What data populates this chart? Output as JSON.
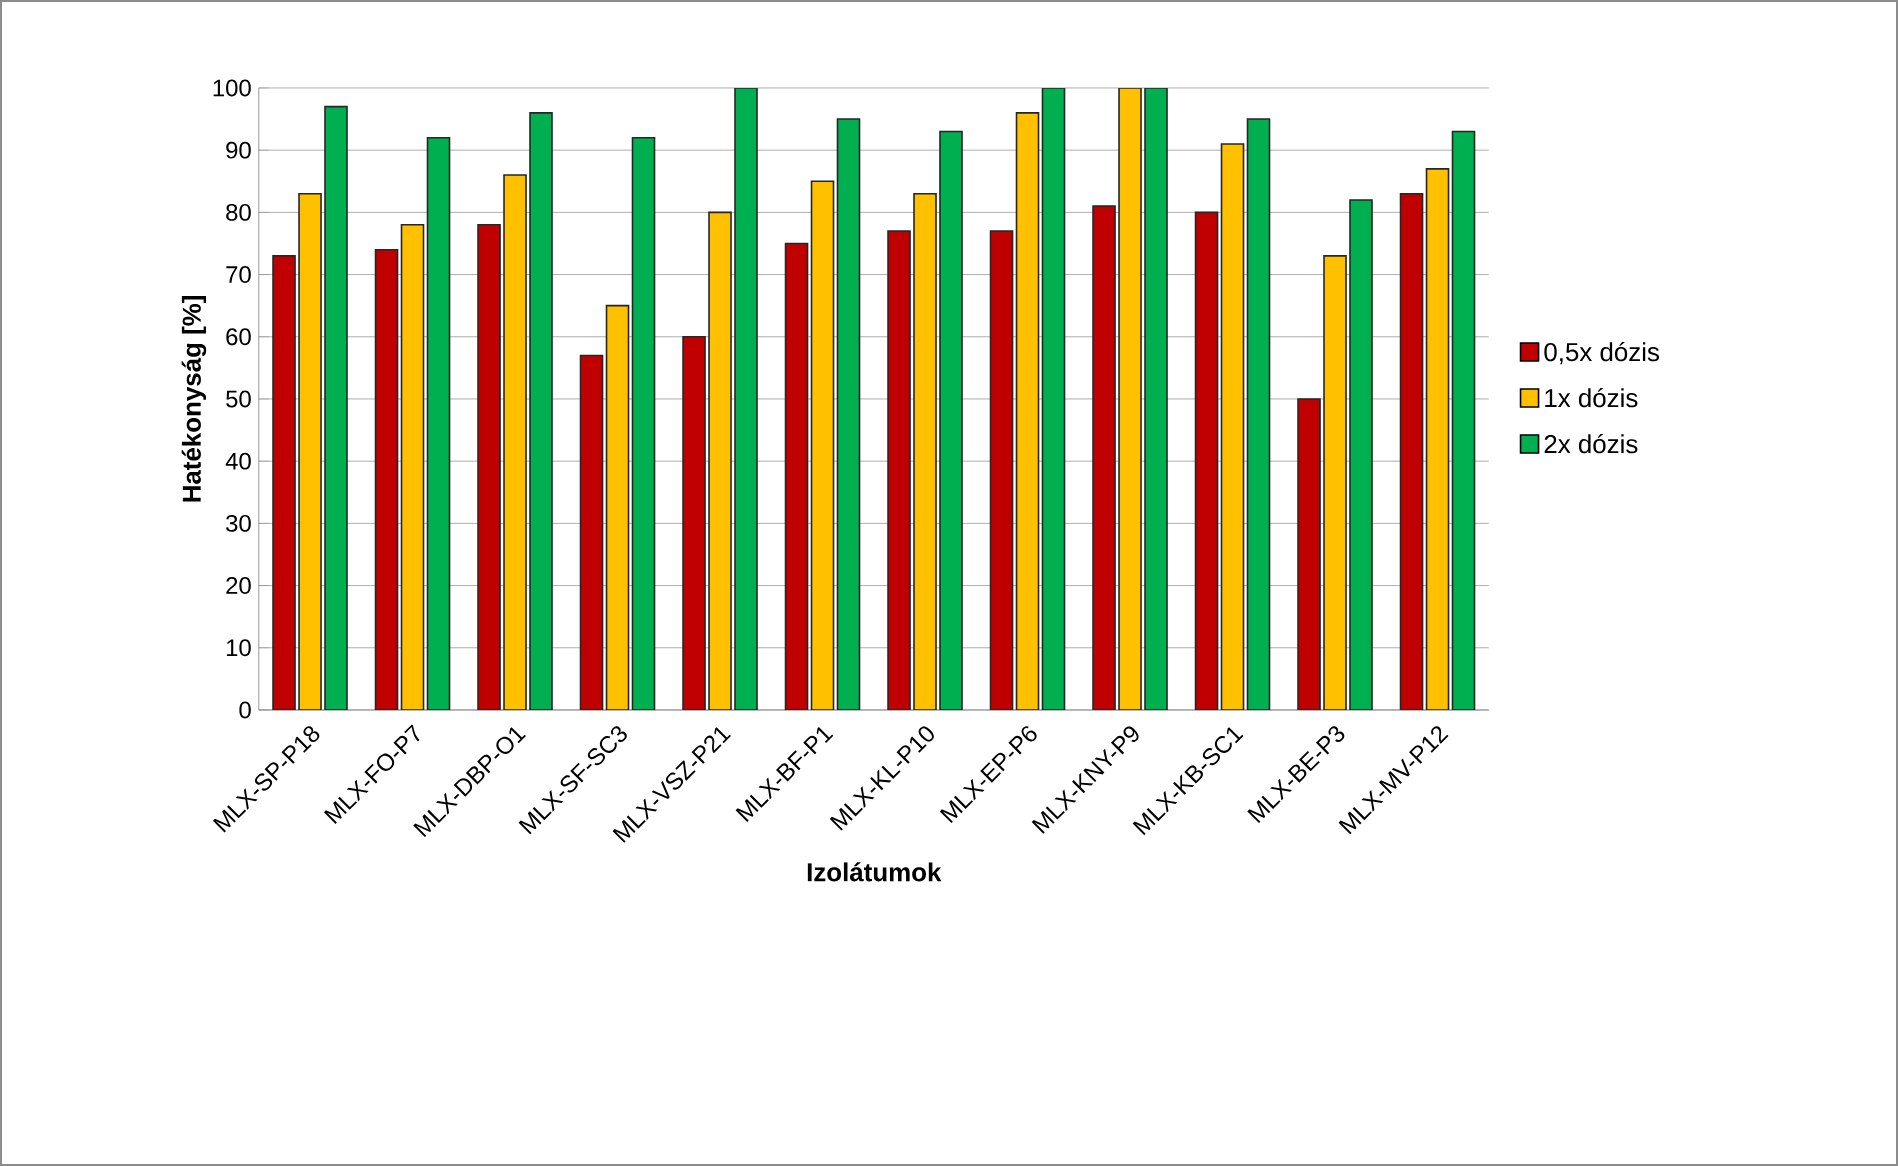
{
  "chart_data": {
    "type": "bar",
    "xlabel": "Izolátumok",
    "ylabel": "Hatékonyság [%]",
    "categories": [
      "MLX-SP-P18",
      "MLX-FO-P7",
      "MLX-DBP-O1",
      "MLX-SF-SC3",
      "MLX-VSZ-P21",
      "MLX-BF-P1",
      "MLX-KL-P10",
      "MLX-EP-P6",
      "MLX-KNY-P9",
      "MLX-KB-SC1",
      "MLX-BE-P3",
      "MLX-MV-P12"
    ],
    "series": [
      {
        "name": "0,5x dózis",
        "color": "#c00000",
        "values": [
          73,
          74,
          78,
          57,
          60,
          75,
          77,
          77,
          81,
          80,
          50,
          83
        ]
      },
      {
        "name": "1x dózis",
        "color": "#ffc000",
        "values": [
          83,
          78,
          86,
          65,
          80,
          85,
          83,
          96,
          100,
          91,
          73,
          87
        ]
      },
      {
        "name": "2x dózis",
        "color": "#00b050",
        "values": [
          97,
          92,
          96,
          92,
          100,
          95,
          93,
          100,
          100,
          95,
          82,
          93
        ]
      }
    ],
    "ylim": [
      0,
      100
    ],
    "yticks": [
      0,
      10,
      20,
      30,
      40,
      50,
      60,
      70,
      80,
      90,
      100
    ],
    "grid": "y",
    "legend": "right"
  }
}
